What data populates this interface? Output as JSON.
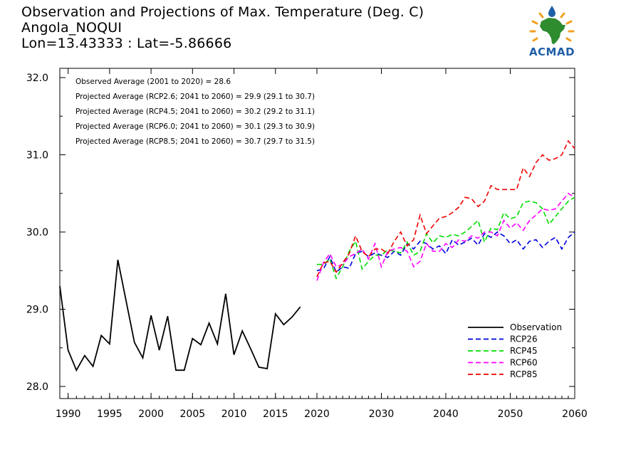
{
  "title_lines": [
    "Observation and Projections of Max. Temperature (Deg. C)",
    "Angola_NOQUI",
    "Lon=13.43333 : Lat=-5.86666"
  ],
  "logo": {
    "text": "ACMAD",
    "icon": "africa-map-logo-icon"
  },
  "annotations": [
    "Observed Average (2001 to 2020) = 28.6",
    "Projected Average (RCP2.6; 2041 to 2060) = 29.9 (29.1 to 30.7)",
    "Projected Average (RCP4.5; 2041 to 2060) = 30.2 (29.2 to 31.1)",
    "Projected Average (RCP6.0; 2041 to 2060) = 30.1 (29.3 to 30.9)",
    "Projected Average (RCP8.5; 2041 to 2060) = 30.7 (29.7 to 31.5)"
  ],
  "chart_data": {
    "type": "line",
    "xlim": [
      1989,
      2060
    ],
    "ylim": [
      27.85,
      32.1
    ],
    "x_ticks": [
      1990,
      1995,
      2000,
      2005,
      2010,
      2015,
      2020,
      2030,
      2040,
      2050,
      2060
    ],
    "y_ticks": [
      28.0,
      29.0,
      30.0,
      31.0,
      32.0
    ],
    "y_tick_labels": [
      "28.0",
      "29.0",
      "30.0",
      "31.0",
      "32.0"
    ],
    "x_scale_note": "non-linear: 1989-2020 compressed, 2020-2060 expanded",
    "legend_position": "bottom-right",
    "grid": false,
    "series": [
      {
        "name": "Observation",
        "color": "#000000",
        "dash": false,
        "x": [
          1989,
          1990,
          1991,
          1992,
          1993,
          1994,
          1995,
          1996,
          1997,
          1998,
          1999,
          2000,
          2001,
          2002,
          2003,
          2004,
          2005,
          2006,
          2007,
          2008,
          2009,
          2010,
          2011,
          2012,
          2013,
          2014,
          2015,
          2016,
          2017,
          2018,
          2019,
          2020
        ],
        "values": [
          29.3,
          28.47,
          28.21,
          28.4,
          28.26,
          28.66,
          28.55,
          29.64,
          29.1,
          28.57,
          28.37,
          28.92,
          28.47,
          28.91,
          28.21,
          28.21,
          28.62,
          28.54,
          28.82,
          28.55,
          29.2,
          28.41,
          28.72,
          28.49,
          28.25,
          28.23,
          28.94,
          28.8,
          28.9,
          29.03,
          null,
          null
        ]
      },
      {
        "name": "RCP26",
        "color": "#0000dd",
        "dash": true,
        "x": [
          2020,
          2021,
          2022,
          2023,
          2024,
          2025,
          2026,
          2027,
          2028,
          2029,
          2030,
          2031,
          2032,
          2033,
          2034,
          2035,
          2036,
          2037,
          2038,
          2039,
          2040,
          2041,
          2042,
          2043,
          2044,
          2045,
          2046,
          2047,
          2048,
          2049,
          2050,
          2051,
          2052,
          2053,
          2054,
          2055,
          2056,
          2057,
          2058,
          2059,
          2060
        ],
        "values": [
          29.5,
          29.52,
          29.68,
          29.48,
          29.55,
          29.53,
          29.72,
          29.75,
          29.68,
          29.73,
          29.7,
          29.67,
          29.75,
          29.7,
          29.85,
          29.78,
          29.88,
          29.85,
          29.78,
          29.82,
          29.72,
          29.9,
          29.83,
          29.87,
          29.92,
          29.83,
          29.98,
          29.93,
          30.0,
          29.95,
          29.85,
          29.9,
          29.78,
          29.88,
          29.9,
          29.8,
          29.88,
          29.93,
          29.78,
          29.93,
          30.0
        ]
      },
      {
        "name": "RCP45",
        "color": "#00dd00",
        "dash": true,
        "x": [
          2020,
          2021,
          2022,
          2023,
          2024,
          2025,
          2026,
          2027,
          2028,
          2029,
          2030,
          2031,
          2032,
          2033,
          2034,
          2035,
          2036,
          2037,
          2038,
          2039,
          2040,
          2041,
          2042,
          2043,
          2044,
          2045,
          2046,
          2047,
          2048,
          2049,
          2050,
          2051,
          2052,
          2053,
          2054,
          2055,
          2056,
          2057,
          2058,
          2059,
          2060
        ],
        "values": [
          29.58,
          29.58,
          29.65,
          29.4,
          29.55,
          29.75,
          29.88,
          29.52,
          29.62,
          29.7,
          29.7,
          29.77,
          29.75,
          29.73,
          29.87,
          29.7,
          29.75,
          29.98,
          29.86,
          29.95,
          29.93,
          29.97,
          29.95,
          30.0,
          30.07,
          30.15,
          29.87,
          30.05,
          30.03,
          30.25,
          30.17,
          30.2,
          30.38,
          30.4,
          30.38,
          30.3,
          30.1,
          30.2,
          30.3,
          30.4,
          30.45
        ]
      },
      {
        "name": "RCP60",
        "color": "#ff00ff",
        "dash": true,
        "x": [
          2020,
          2021,
          2022,
          2023,
          2024,
          2025,
          2026,
          2027,
          2028,
          2029,
          2030,
          2031,
          2032,
          2033,
          2034,
          2035,
          2036,
          2037,
          2038,
          2039,
          2040,
          2041,
          2042,
          2043,
          2044,
          2045,
          2046,
          2047,
          2048,
          2049,
          2050,
          2051,
          2052,
          2053,
          2054,
          2055,
          2056,
          2057,
          2058,
          2059,
          2060
        ],
        "values": [
          29.37,
          29.6,
          29.72,
          29.55,
          29.58,
          29.68,
          29.72,
          29.78,
          29.65,
          29.85,
          29.55,
          29.75,
          29.78,
          29.8,
          29.75,
          29.55,
          29.62,
          29.85,
          29.75,
          29.75,
          29.85,
          29.8,
          29.9,
          29.88,
          29.95,
          29.92,
          30.0,
          30.0,
          29.95,
          30.15,
          30.05,
          30.12,
          30.02,
          30.15,
          30.22,
          30.3,
          30.28,
          30.3,
          30.4,
          30.5,
          30.45
        ]
      },
      {
        "name": "RCP85",
        "color": "#ee0000",
        "dash": true,
        "x": [
          2020,
          2021,
          2022,
          2023,
          2024,
          2025,
          2026,
          2027,
          2028,
          2029,
          2030,
          2031,
          2032,
          2033,
          2034,
          2035,
          2036,
          2037,
          2038,
          2039,
          2040,
          2041,
          2042,
          2043,
          2044,
          2045,
          2046,
          2047,
          2048,
          2049,
          2050,
          2051,
          2052,
          2053,
          2054,
          2055,
          2056,
          2057,
          2058,
          2059,
          2060
        ],
        "values": [
          29.42,
          29.6,
          29.62,
          29.48,
          29.6,
          29.72,
          29.95,
          29.75,
          29.68,
          29.78,
          29.78,
          29.72,
          29.88,
          30.0,
          29.82,
          29.9,
          30.22,
          29.98,
          30.08,
          30.18,
          30.2,
          30.25,
          30.32,
          30.45,
          30.43,
          30.33,
          30.4,
          30.6,
          30.55,
          30.55,
          30.55,
          30.55,
          30.83,
          30.72,
          30.9,
          31.0,
          30.93,
          30.95,
          31.0,
          31.18,
          31.08
        ]
      }
    ]
  }
}
